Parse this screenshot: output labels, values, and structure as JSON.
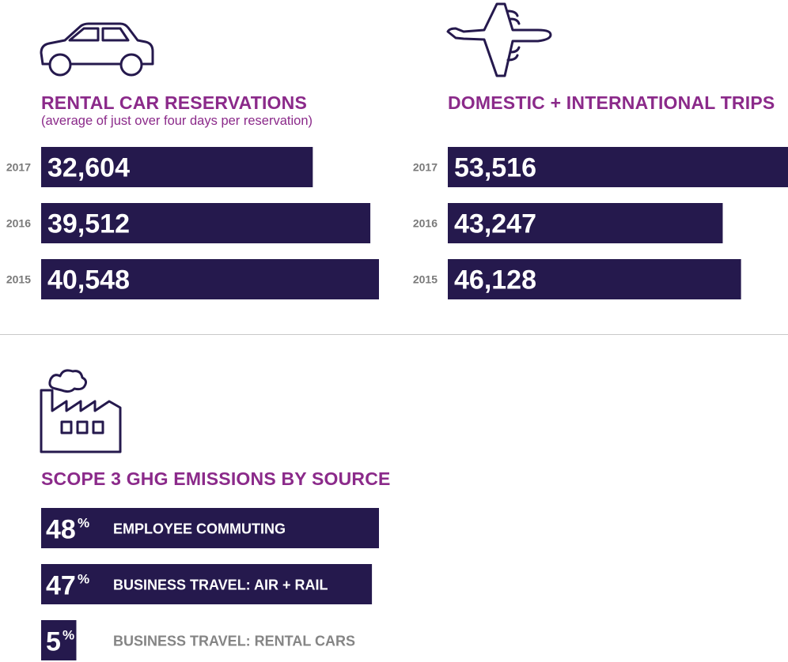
{
  "colors": {
    "bar": "#25194d",
    "accent": "#8b2a8a",
    "year_label": "#7a7a7a",
    "muted_text": "#858585",
    "bar_text": "#ffffff"
  },
  "icons": {
    "car": "car-icon",
    "plane": "airplane-icon",
    "factory": "factory-icon"
  },
  "rental": {
    "title": "RENTAL CAR RESERVATIONS",
    "subtitle": "(average of just over four days per reservation)"
  },
  "trips": {
    "title": "DOMESTIC + INTERNATIONAL TRIPS"
  },
  "emissions": {
    "title": "SCOPE 3 GHG EMISSIONS BY SOURCE"
  },
  "chart_data": [
    {
      "type": "bar",
      "title": "RENTAL CAR RESERVATIONS",
      "subtitle": "(average of just over four days per reservation)",
      "categories": [
        "2017",
        "2016",
        "2015"
      ],
      "values": [
        32604,
        39512,
        40548
      ],
      "value_labels": [
        "32,604",
        "39,512",
        "40,548"
      ],
      "orientation": "horizontal",
      "xlim": [
        0,
        40548
      ]
    },
    {
      "type": "bar",
      "title": "DOMESTIC + INTERNATIONAL TRIPS",
      "categories": [
        "2017",
        "2016",
        "2015"
      ],
      "values": [
        53516,
        43247,
        46128
      ],
      "value_labels": [
        "53,516",
        "43,247",
        "46,128"
      ],
      "orientation": "horizontal",
      "xlim": [
        0,
        53516
      ]
    },
    {
      "type": "bar",
      "title": "SCOPE 3 GHG EMISSIONS BY SOURCE",
      "categories": [
        "EMPLOYEE COMMUTING",
        "BUSINESS TRAVEL: AIR + RAIL",
        "BUSINESS TRAVEL: RENTAL CARS"
      ],
      "values": [
        48,
        47,
        5
      ],
      "value_labels": [
        "48",
        "47",
        "5"
      ],
      "unit": "%",
      "orientation": "horizontal",
      "xlim": [
        0,
        48
      ]
    }
  ]
}
